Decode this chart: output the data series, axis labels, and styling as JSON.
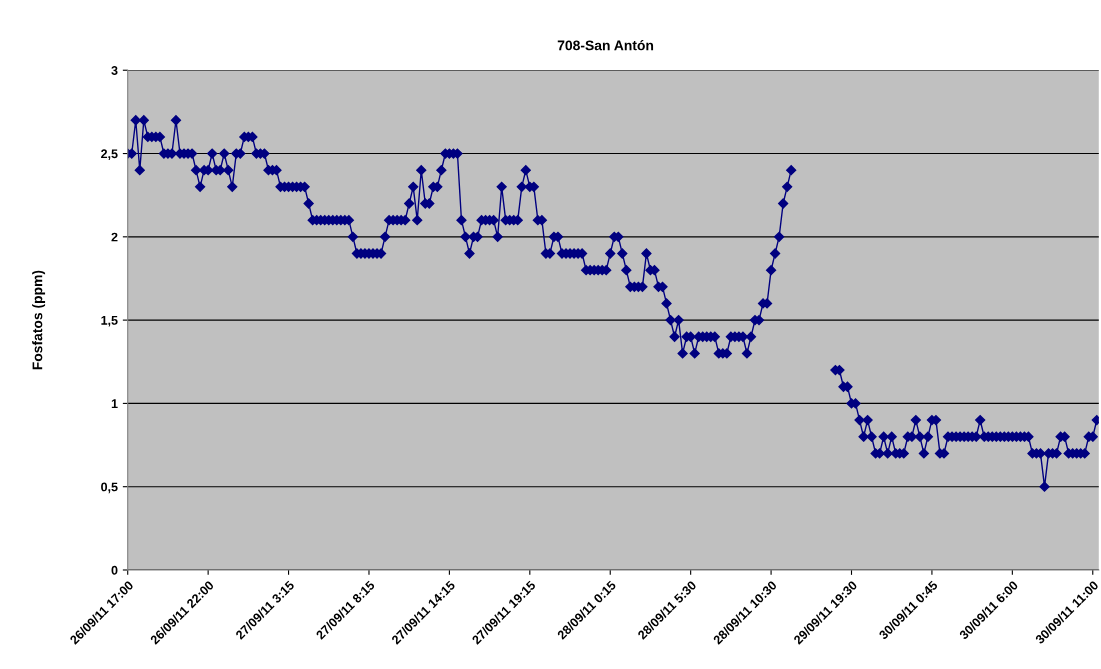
{
  "chart_data": {
    "type": "line",
    "title": "708-San Antón",
    "ylabel": "Fosfatos (ppm)",
    "categories": [
      "26/09/11 17:00",
      null,
      null,
      null,
      null,
      null,
      null,
      null,
      null,
      null,
      null,
      null,
      null,
      null,
      null,
      null,
      null,
      null,
      null,
      null,
      "26/09/11 22:00",
      null,
      null,
      null,
      null,
      null,
      null,
      null,
      null,
      null,
      null,
      null,
      null,
      null,
      null,
      null,
      null,
      null,
      null,
      null,
      "27/09/11 3:15",
      null,
      null,
      null,
      null,
      null,
      null,
      null,
      null,
      null,
      null,
      null,
      null,
      null,
      null,
      null,
      null,
      null,
      null,
      null,
      "27/09/11 8:15",
      null,
      null,
      null,
      null,
      null,
      null,
      null,
      null,
      null,
      null,
      null,
      null,
      null,
      null,
      null,
      null,
      null,
      null,
      null,
      "27/09/11 14:15",
      null,
      null,
      null,
      null,
      null,
      null,
      null,
      null,
      null,
      null,
      null,
      null,
      null,
      null,
      null,
      null,
      null,
      null,
      null,
      "27/09/11 19:15",
      null,
      null,
      null,
      null,
      null,
      null,
      null,
      null,
      null,
      null,
      null,
      null,
      null,
      null,
      null,
      null,
      null,
      null,
      null,
      "28/09/11 0:15",
      null,
      null,
      null,
      null,
      null,
      null,
      null,
      null,
      null,
      null,
      null,
      null,
      null,
      null,
      null,
      null,
      null,
      null,
      null,
      "28/09/11 5:30",
      null,
      null,
      null,
      null,
      null,
      null,
      null,
      null,
      null,
      null,
      null,
      null,
      null,
      null,
      null,
      null,
      null,
      null,
      null,
      "28/09/11 10:30",
      null,
      null,
      null,
      null,
      null,
      null,
      null,
      null,
      null,
      null,
      null,
      null,
      null,
      null,
      null,
      null,
      null,
      null,
      null,
      "29/09/11 19:30",
      null,
      null,
      null,
      null,
      null,
      null,
      null,
      null,
      null,
      null,
      null,
      null,
      null,
      null,
      null,
      null,
      null,
      null,
      null,
      "30/09/11 0:45",
      null,
      null,
      null,
      null,
      null,
      null,
      null,
      null,
      null,
      null,
      null,
      null,
      null,
      null,
      null,
      null,
      null,
      null,
      null,
      "30/09/11 6:00",
      null,
      null,
      null,
      null,
      null,
      null,
      null,
      null,
      null,
      null,
      null,
      null,
      null,
      null,
      null,
      null,
      null,
      null,
      null,
      "30/09/11 11:00",
      null
    ],
    "series": [
      {
        "color": "#000080",
        "values": [
          2.5,
          2.5,
          2.7,
          2.4,
          2.7,
          2.6,
          2.6,
          2.6,
          2.6,
          2.5,
          2.5,
          2.5,
          2.7,
          2.5,
          2.5,
          2.5,
          2.5,
          2.4,
          2.3,
          2.4,
          2.4,
          2.5,
          2.4,
          2.4,
          2.5,
          2.4,
          2.3,
          2.5,
          2.5,
          2.6,
          2.6,
          2.6,
          2.5,
          2.5,
          2.5,
          2.4,
          2.4,
          2.4,
          2.3,
          2.3,
          2.3,
          2.3,
          2.3,
          2.3,
          2.3,
          2.2,
          2.1,
          2.1,
          2.1,
          2.1,
          2.1,
          2.1,
          2.1,
          2.1,
          2.1,
          2.1,
          2.0,
          1.9,
          1.9,
          1.9,
          1.9,
          1.9,
          1.9,
          1.9,
          2.0,
          2.1,
          2.1,
          2.1,
          2.1,
          2.1,
          2.2,
          2.3,
          2.1,
          2.4,
          2.2,
          2.2,
          2.3,
          2.3,
          2.4,
          2.5,
          2.5,
          2.5,
          2.5,
          2.1,
          2.0,
          1.9,
          2.0,
          2.0,
          2.1,
          2.1,
          2.1,
          2.1,
          2.0,
          2.3,
          2.1,
          2.1,
          2.1,
          2.1,
          2.3,
          2.4,
          2.3,
          2.3,
          2.1,
          2.1,
          1.9,
          1.9,
          2.0,
          2.0,
          1.9,
          1.9,
          1.9,
          1.9,
          1.9,
          1.9,
          1.8,
          1.8,
          1.8,
          1.8,
          1.8,
          1.8,
          1.9,
          2.0,
          2.0,
          1.9,
          1.8,
          1.7,
          1.7,
          1.7,
          1.7,
          1.9,
          1.8,
          1.8,
          1.7,
          1.7,
          1.6,
          1.5,
          1.4,
          1.5,
          1.3,
          1.4,
          1.4,
          1.3,
          1.4,
          1.4,
          1.4,
          1.4,
          1.4,
          1.3,
          1.3,
          1.3,
          1.4,
          1.4,
          1.4,
          1.4,
          1.3,
          1.4,
          1.5,
          1.5,
          1.6,
          1.6,
          1.8,
          1.9,
          2.0,
          2.2,
          2.3,
          2.4,
          null,
          null,
          null,
          null,
          null,
          null,
          null,
          null,
          null,
          null,
          1.2,
          1.2,
          1.1,
          1.1,
          1.0,
          1.0,
          0.9,
          0.8,
          0.9,
          0.8,
          0.7,
          0.7,
          0.8,
          0.7,
          0.8,
          0.7,
          0.7,
          0.7,
          0.8,
          0.8,
          0.9,
          0.8,
          0.7,
          0.8,
          0.9,
          0.9,
          0.7,
          0.7,
          0.8,
          0.8,
          0.8,
          0.8,
          0.8,
          0.8,
          0.8,
          0.8,
          0.9,
          0.8,
          0.8,
          0.8,
          0.8,
          0.8,
          0.8,
          0.8,
          0.8,
          0.8,
          0.8,
          0.8,
          0.8,
          0.7,
          0.7,
          0.7,
          0.5,
          0.7,
          0.7,
          0.7,
          0.8,
          0.8,
          0.7,
          0.7,
          0.7,
          0.7,
          0.7,
          0.8,
          0.8,
          0.9
        ]
      }
    ],
    "ylim": [
      0,
      3
    ],
    "yticks": [
      0,
      {
        "value": 0.5,
        "label": "0,5"
      },
      1,
      {
        "value": 1.5,
        "label": "1,5"
      },
      2,
      {
        "value": 2.5,
        "label": "2,5"
      },
      3
    ],
    "grid": "y",
    "marker": "diamond",
    "line_style": "solid",
    "legend": false
  }
}
